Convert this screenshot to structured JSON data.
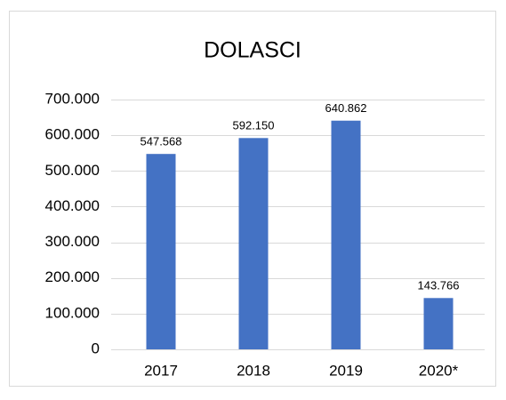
{
  "chart_data": {
    "type": "bar",
    "title": "DOLASCI",
    "categories": [
      "2017",
      "2018",
      "2019",
      "2020*"
    ],
    "values": [
      547568,
      592150,
      640862,
      143766
    ],
    "value_labels": [
      "547.568",
      "592.150",
      "640.862",
      "143.766"
    ],
    "color": "#4472c4",
    "ylim": [
      0,
      700000
    ],
    "yticks": [
      0,
      {
        "value": 100000,
        "label": "100.000"
      },
      {
        "value": 200000,
        "label": "200.000"
      },
      {
        "value": 300000,
        "label": "300.000"
      },
      {
        "value": 400000,
        "label": "400.000"
      },
      {
        "value": 500000,
        "label": "500.000"
      },
      {
        "value": 600000,
        "label": "600.000"
      },
      {
        "value": 700000,
        "label": "700.000"
      }
    ],
    "grid": true
  }
}
